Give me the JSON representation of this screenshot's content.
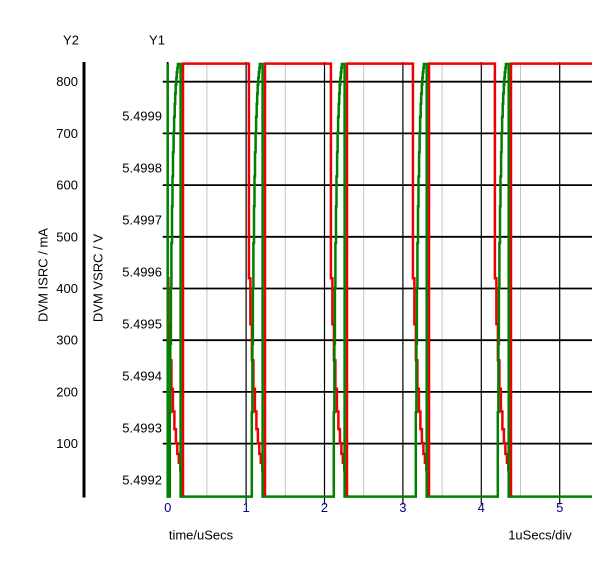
{
  "titles": {
    "y2": "Y2",
    "y1": "Y1"
  },
  "x_axis": {
    "label": "time/uSecs",
    "scale_label": "1uSecs/div",
    "tick_labels": [
      "0",
      "1",
      "2",
      "3",
      "4",
      "5"
    ],
    "tick_values": [
      0,
      1,
      2,
      3,
      4,
      5
    ],
    "minor_tick_values": [
      0.5,
      1.5,
      2.5,
      3.5,
      4.5
    ],
    "range_uSecs": [
      0,
      5.412
    ],
    "tick_label_color": "#00008b"
  },
  "y1_axis": {
    "title": "Y1",
    "label": "DVM VSRC / V",
    "tick_labels": [
      "5.4999",
      "5.4998",
      "5.4997",
      "5.4996",
      "5.4995",
      "5.4994",
      "5.4993",
      "5.4992"
    ],
    "tick_values": [
      5.4999,
      5.4998,
      5.4997,
      5.4996,
      5.4995,
      5.4994,
      5.4993,
      5.4992
    ],
    "range_V": [
      5.499166,
      5.500004
    ],
    "tick_label_color": "#000000"
  },
  "y2_axis": {
    "title": "Y2",
    "label": "DVM ISRC / mA",
    "tick_labels": [
      "800",
      "700",
      "600",
      "500",
      "400",
      "300",
      "200",
      "100"
    ],
    "tick_values": [
      800,
      700,
      600,
      500,
      400,
      300,
      200,
      100
    ],
    "range_mA": [
      -4,
      838
    ],
    "tick_label_color": "#000000"
  },
  "grid": {
    "major_color": "#000000",
    "minor_color": "#c6c6c6"
  },
  "chart_data": {
    "type": "line",
    "x_unit": "uSecs",
    "period_uSecs": 1.046,
    "series": [
      {
        "name": "DVM ISRC",
        "axis": "Y2",
        "units": "mA",
        "color": "#ee0000",
        "description": "Source current: ~835 mA plateau with periodic notches where current staircases down to 0 then snaps back",
        "top_level_mA": 835,
        "notch_starts_uSecs": [
          -0.01,
          1.036,
          2.082,
          3.128,
          4.174
        ],
        "decay_step_uSecs": 0.019,
        "decay_levels_mA": [
          420,
          331,
          261,
          206,
          162,
          128,
          101,
          80,
          63,
          49,
          39
        ],
        "zero_at_offset_uSecs": 0.19,
        "rise_at_offset_uSecs": 0.205
      },
      {
        "name": "DVM VSRC",
        "axis": "Y1",
        "units": "V",
        "color": "#008000",
        "description": "Source voltage: clipped at ~5.49917 V bottom, exponential staircase recovery to 5.5000 V during each current notch, then instant drop",
        "bottom_V": 5.499168,
        "top_V": 5.5,
        "rise_starts_uSecs": [
          0.02,
          1.066,
          2.112,
          3.158,
          4.204
        ],
        "rise_step_uSecs": 0.006875,
        "rise_levels_V": [
          5.499168,
          5.49933,
          5.4994617,
          5.499569,
          5.4996556,
          5.4997263,
          5.4997837,
          5.4998303,
          5.4998677,
          5.4998985,
          5.4999234,
          5.4999434,
          5.49996,
          5.4999733,
          5.4999842,
          5.4999925,
          5.5
        ],
        "top_hold_uSecs": 0.035,
        "initial_drop_at_t0": true
      }
    ]
  }
}
